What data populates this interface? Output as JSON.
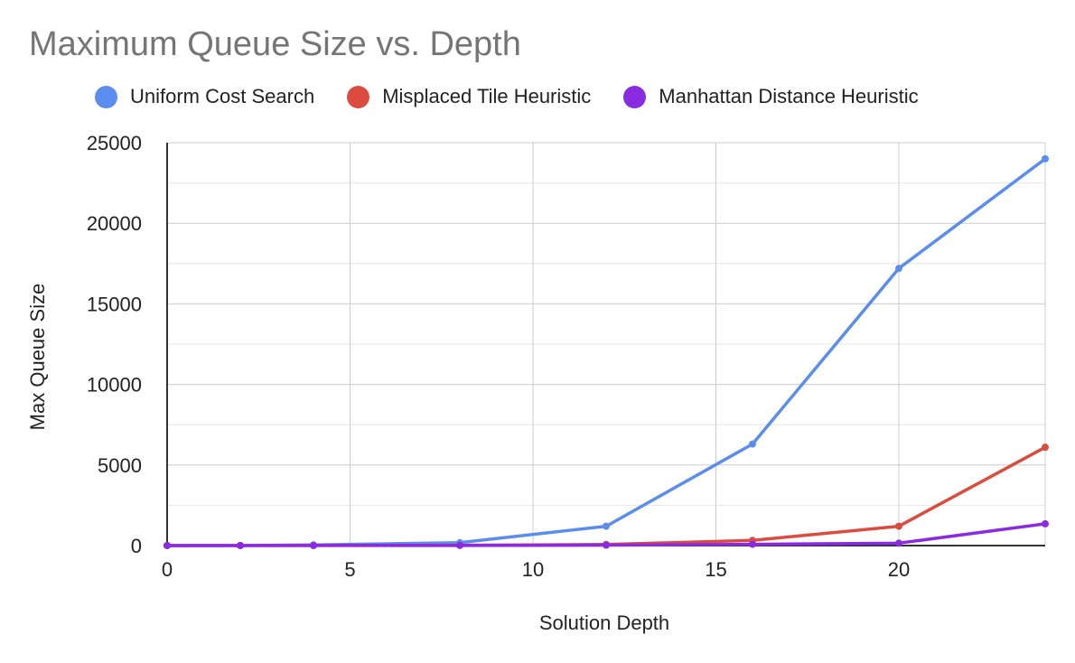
{
  "chart_data": {
    "type": "line",
    "title": "Maximum Queue Size vs. Depth",
    "xlabel": "Solution Depth",
    "ylabel": "Max Queue Size",
    "xlim": [
      0,
      24
    ],
    "ylim": [
      0,
      25000
    ],
    "x_ticks": [
      0,
      5,
      10,
      15,
      20
    ],
    "y_ticks": [
      0,
      5000,
      10000,
      15000,
      20000,
      25000
    ],
    "grid": true,
    "legend_position": "top",
    "x": [
      0,
      2,
      4,
      8,
      12,
      16,
      20,
      24
    ],
    "series": [
      {
        "name": "Uniform Cost Search",
        "color": "#5b8def",
        "values": [
          1,
          10,
          40,
          180,
          1200,
          6300,
          17200,
          24000
        ]
      },
      {
        "name": "Misplaced Tile Heuristic",
        "color": "#db4c3f",
        "values": [
          1,
          4,
          8,
          20,
          70,
          320,
          1200,
          6100
        ]
      },
      {
        "name": "Manhattan Distance Heuristic",
        "color": "#8a2be2",
        "values": [
          1,
          3,
          5,
          10,
          25,
          80,
          150,
          1350
        ]
      }
    ]
  }
}
